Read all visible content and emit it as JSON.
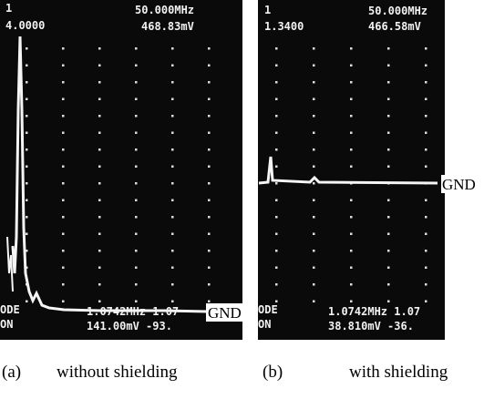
{
  "panels": [
    {
      "marker": "1",
      "marker_value": "4.0000",
      "frequency": "50.000MHz",
      "level": "468.83mV",
      "mode_line1": "ODE",
      "mode_line2": "ON",
      "bottom_freq": "1.0742MHz 1.07",
      "bottom_level": "141.00mV -93.",
      "trace_label": "GND",
      "caption_index": "(a)",
      "caption": "without shielding"
    },
    {
      "marker": "1",
      "marker_value": "1.3400",
      "frequency": "50.000MHz",
      "level": "466.58mV",
      "mode_line1": "ODE",
      "mode_line2": "ON",
      "bottom_freq": "1.0742MHz 1.07",
      "bottom_level": "38.810mV -36.",
      "trace_label": "GND",
      "caption_index": "(b)",
      "caption": "with shielding"
    }
  ]
}
